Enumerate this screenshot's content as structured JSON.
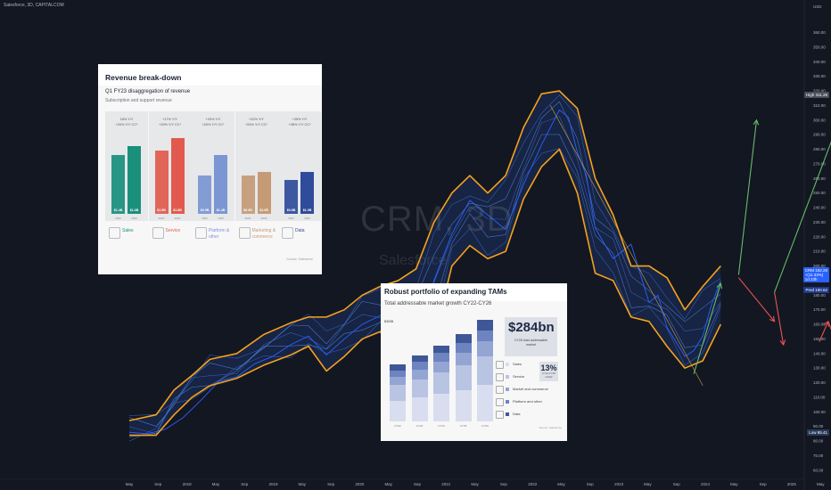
{
  "header": {
    "text": "Salesforce, 3D, CAPITALCOM"
  },
  "watermark": {
    "symbol": "CRM, 3D",
    "name": "Salesforce"
  },
  "colors": {
    "background": "#131722",
    "channel": "#f7a21b",
    "price": "#2962ff",
    "up_arrow": "#66bb6a",
    "down_arrow": "#ef5350"
  },
  "chart_data": {
    "type": "line",
    "currency": "USD",
    "x_ticks": [
      "May",
      "Sep",
      "2018",
      "May",
      "Sep",
      "2019",
      "May",
      "Sep",
      "2020",
      "May",
      "Sep",
      "2021",
      "May",
      "Sep",
      "2022",
      "May",
      "Sep",
      "2023",
      "May",
      "Sep",
      "2024",
      "May",
      "Sep",
      "2025",
      "May",
      "12"
    ],
    "y_ticks": [
      60,
      70,
      80,
      90,
      100,
      110,
      120,
      130,
      140,
      150,
      160,
      170,
      180,
      190,
      200,
      210,
      220,
      230,
      240,
      250,
      260,
      270,
      280,
      290,
      300,
      310,
      320,
      330,
      340,
      350,
      360
    ],
    "ylim": [
      55,
      375
    ],
    "price_series": [
      [
        0,
        86
      ],
      [
        2,
        85
      ],
      [
        4,
        88
      ],
      [
        6,
        96
      ],
      [
        8,
        108
      ],
      [
        10,
        121
      ],
      [
        12,
        124
      ],
      [
        14,
        133
      ],
      [
        16,
        138
      ],
      [
        18,
        146
      ],
      [
        20,
        152
      ],
      [
        22,
        139
      ],
      [
        24,
        150
      ],
      [
        26,
        160
      ],
      [
        28,
        166
      ],
      [
        30,
        175
      ],
      [
        32,
        140
      ],
      [
        33,
        165
      ],
      [
        34,
        190
      ],
      [
        36,
        222
      ],
      [
        38,
        245
      ],
      [
        40,
        235
      ],
      [
        42,
        225
      ],
      [
        44,
        256
      ],
      [
        46,
        283
      ],
      [
        48,
        307
      ],
      [
        49,
        302
      ],
      [
        50,
        278
      ],
      [
        51,
        262
      ],
      [
        52,
        226
      ],
      [
        54,
        205
      ],
      [
        56,
        215
      ],
      [
        58,
        175
      ],
      [
        59,
        180
      ],
      [
        60,
        158
      ],
      [
        62,
        138
      ],
      [
        63,
        142
      ],
      [
        64,
        152
      ],
      [
        65,
        174
      ],
      [
        66,
        190
      ]
    ],
    "channel_upper": [
      [
        0,
        94
      ],
      [
        3,
        98
      ],
      [
        5,
        115
      ],
      [
        7,
        125
      ],
      [
        9,
        136
      ],
      [
        12,
        140
      ],
      [
        15,
        153
      ],
      [
        18,
        161
      ],
      [
        20,
        165
      ],
      [
        22,
        165
      ],
      [
        24,
        170
      ],
      [
        26,
        180
      ],
      [
        28,
        186
      ],
      [
        30,
        190
      ],
      [
        32,
        198
      ],
      [
        34,
        230
      ],
      [
        36,
        250
      ],
      [
        38,
        262
      ],
      [
        40,
        250
      ],
      [
        42,
        262
      ],
      [
        44,
        295
      ],
      [
        46,
        318
      ],
      [
        48,
        320
      ],
      [
        50,
        308
      ],
      [
        52,
        260
      ],
      [
        54,
        235
      ],
      [
        56,
        200
      ],
      [
        58,
        200
      ],
      [
        60,
        192
      ],
      [
        62,
        170
      ],
      [
        64,
        186
      ],
      [
        66,
        200
      ]
    ],
    "channel_lower": [
      [
        0,
        84
      ],
      [
        3,
        84
      ],
      [
        5,
        98
      ],
      [
        7,
        110
      ],
      [
        9,
        118
      ],
      [
        12,
        123
      ],
      [
        15,
        132
      ],
      [
        18,
        139
      ],
      [
        20,
        145
      ],
      [
        22,
        128
      ],
      [
        24,
        138
      ],
      [
        26,
        150
      ],
      [
        28,
        155
      ],
      [
        30,
        140
      ],
      [
        32,
        128
      ],
      [
        34,
        150
      ],
      [
        36,
        200
      ],
      [
        38,
        214
      ],
      [
        40,
        205
      ],
      [
        42,
        210
      ],
      [
        44,
        246
      ],
      [
        46,
        268
      ],
      [
        48,
        280
      ],
      [
        50,
        250
      ],
      [
        52,
        195
      ],
      [
        54,
        190
      ],
      [
        56,
        165
      ],
      [
        58,
        162
      ],
      [
        60,
        145
      ],
      [
        62,
        130
      ],
      [
        64,
        135
      ],
      [
        66,
        160
      ]
    ],
    "trend_line": [
      [
        47,
        310
      ],
      [
        64,
        118
      ]
    ],
    "projection_up": [
      [
        [
          63,
          126
        ],
        [
          66,
          188
        ]
      ],
      [
        [
          68,
          194
        ],
        [
          70,
          300
        ]
      ],
      [
        [
          72,
          182
        ],
        [
          79,
          296
        ]
      ]
    ],
    "projection_down": [
      [
        [
          68,
          192
        ],
        [
          72,
          162
        ]
      ],
      [
        [
          72,
          182
        ],
        [
          73,
          146
        ]
      ],
      [
        [
          77,
          148
        ],
        [
          78,
          162
        ]
      ],
      [
        [
          78,
          162
        ],
        [
          81,
          112
        ]
      ],
      [
        [
          81,
          112
        ],
        [
          86,
          60
        ]
      ]
    ],
    "price_badges": {
      "high": {
        "label": "High",
        "value": "311.28"
      },
      "last": {
        "label": "CRM",
        "lines": [
          "192.29",
          "+(11.33%)",
          "1d 23h"
        ]
      },
      "pred": {
        "label": "Pred",
        "value": "190.62"
      },
      "low": {
        "label": "Low",
        "value": "85.41"
      }
    }
  },
  "inset1": {
    "title": "Revenue break-down",
    "subtitle": "Q1 FY23 disaggregation of revenue",
    "subtitle2": "Subscription and support revenue",
    "source": "Source: Salesforce",
    "segments": [
      {
        "name": "Sales",
        "growth": [
          "18% Y/Y",
          "+20% Y/Y CC*"
        ],
        "values": [
          1.4,
          1.6
        ],
        "labels": [
          "$1.4B",
          "$1.6B"
        ],
        "years": [
          "2022",
          "2023"
        ],
        "color": "#1a8f7c"
      },
      {
        "name": "Service",
        "growth": [
          "+17% Y/Y",
          "+19% Y/Y CC*"
        ],
        "values": [
          1.5,
          1.8
        ],
        "labels": [
          "$1.5B",
          "$1.8B"
        ],
        "years": [
          "2022",
          "2023"
        ],
        "color": "#e25a4d"
      },
      {
        "name": "Platform & other",
        "growth": [
          "+20% Y/Y",
          "+20% Y/Y CC*"
        ],
        "values": [
          0.9,
          1.4
        ],
        "labels": [
          "$0.9B",
          "$1.4B"
        ],
        "years": [
          "2022",
          "2023"
        ],
        "color": "#7b96d3"
      },
      {
        "name": "Marketing & commerce",
        "growth": [
          "+22% Y/Y",
          "+24% Y/Y CC*"
        ],
        "values": [
          0.9,
          1.0
        ],
        "labels": [
          "$0.9B",
          "$1.0B"
        ],
        "years": [
          "2022",
          "2023"
        ],
        "color": "#c59b76"
      },
      {
        "name": "Data",
        "growth": [
          "+35% Y/Y",
          "+38% Y/Y CC*"
        ],
        "values": [
          0.8,
          1.0
        ],
        "labels": [
          "$0.8B",
          "$1.0B"
        ],
        "years": [
          "2022",
          "2023"
        ],
        "color": "#2f4c9a"
      }
    ]
  },
  "inset2": {
    "title": "Robust portfolio of expanding TAMs",
    "subtitle": "Total addressable market growth CY22-CY26",
    "unit": "$300B",
    "tam_value": "$284bn",
    "tam_caption": [
      "CY26 total addressable",
      "market"
    ],
    "cagr": "13%",
    "cagr_caption": [
      "CY22-CY26",
      "CAGR"
    ],
    "source": "Source: Salesforce",
    "years": [
      "CY22",
      "CY23",
      "CY24",
      "CY25",
      "CY26"
    ],
    "stack_totals": [
      159,
      185,
      213,
      245,
      284
    ],
    "legend": [
      "Sales",
      "Service",
      "Market and commerce",
      "Platform and other",
      "Data"
    ],
    "legend_colors": [
      "#d8deef",
      "#b9c4e2",
      "#94a5d4",
      "#6d84c1",
      "#3f5796"
    ]
  }
}
